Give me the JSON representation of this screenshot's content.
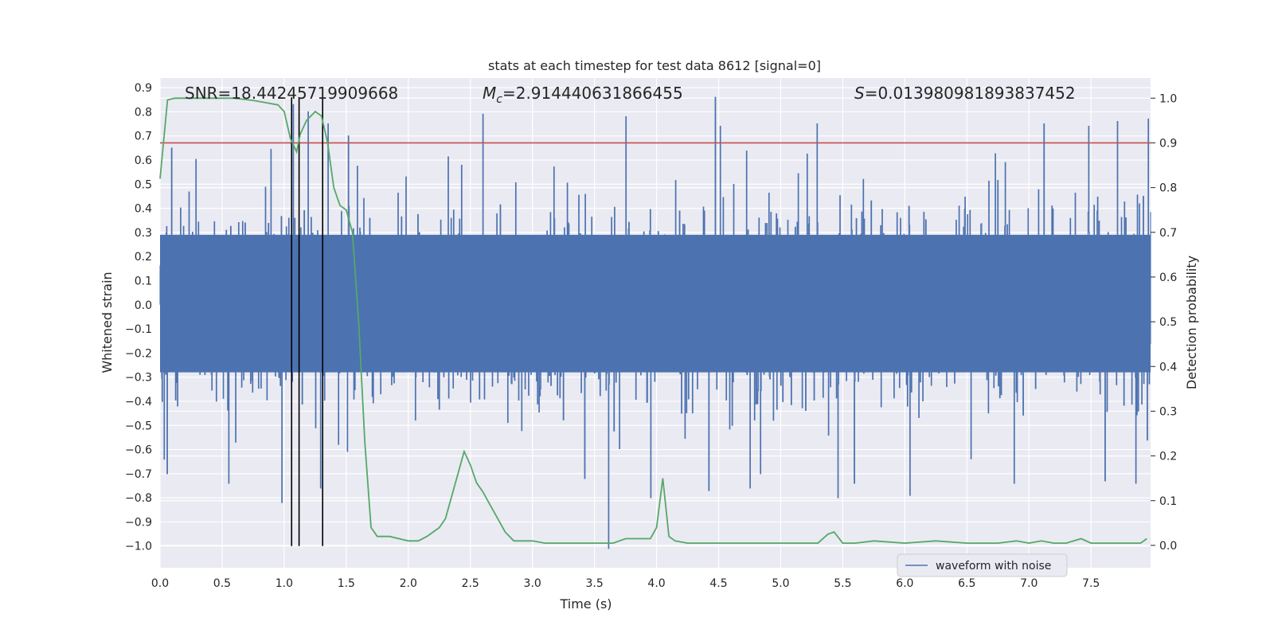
{
  "chart_data": {
    "type": "line",
    "title": "stats at each timestep for test data 8612 [signal=0]",
    "xlabel": "Time (s)",
    "ylabel": "Whitened strain",
    "y2label": "Detection probability",
    "xlim": [
      0.0,
      7.98
    ],
    "ylim": [
      -1.09,
      0.94
    ],
    "y2lim": [
      -0.05,
      1.045
    ],
    "xticks": [
      "0.0",
      "0.5",
      "1.0",
      "1.5",
      "2.0",
      "2.5",
      "3.0",
      "3.5",
      "4.0",
      "4.5",
      "5.0",
      "5.5",
      "6.0",
      "6.5",
      "7.0",
      "7.5"
    ],
    "yticks": [
      "0.9",
      "0.8",
      "0.7",
      "0.6",
      "0.5",
      "0.4",
      "0.3",
      "0.2",
      "0.1",
      "0.0",
      "−0.1",
      "−0.2",
      "−0.3",
      "−0.4",
      "−0.5",
      "−0.6",
      "−0.7",
      "−0.8",
      "−0.9",
      "−1.0"
    ],
    "y2ticks": [
      "1.0",
      "0.9",
      "0.8",
      "0.7",
      "0.6",
      "0.5",
      "0.4",
      "0.3",
      "0.2",
      "0.1",
      "0.0"
    ],
    "grid": true,
    "legend": {
      "position": "lower-right",
      "entries": [
        "waveform with noise"
      ]
    },
    "annotations": {
      "snr": "SNR=18.44245719909668",
      "mc_prefix": "M",
      "mc_sub": "c",
      "mc_value": "=2.914440631866455",
      "s_prefix": "S",
      "s_value": "=0.013980981893837452"
    },
    "threshold_line": {
      "axis": "y2",
      "value": 0.9,
      "color": "#c44e52"
    },
    "vertical_lines_x": [
      1.06,
      1.12,
      1.31
    ],
    "waveform": {
      "name": "waveform with noise",
      "color": "#4c72b0",
      "sample_rate_hz": 250,
      "band": [
        -0.28,
        0.29
      ],
      "peaks": [
        {
          "t": 0.03,
          "v": -0.64
        },
        {
          "t": 0.09,
          "v": 0.65
        },
        {
          "t": 0.55,
          "v": -0.74
        },
        {
          "t": 0.98,
          "v": -0.82
        },
        {
          "t": 1.07,
          "v": 0.83
        },
        {
          "t": 1.19,
          "v": 0.8
        },
        {
          "t": 1.29,
          "v": -0.76
        },
        {
          "t": 1.35,
          "v": 0.75
        },
        {
          "t": 2.6,
          "v": 0.79
        },
        {
          "t": 3.42,
          "v": -0.72
        },
        {
          "t": 3.61,
          "v": -1.01
        },
        {
          "t": 3.75,
          "v": 0.78
        },
        {
          "t": 3.95,
          "v": -0.8
        },
        {
          "t": 4.42,
          "v": -0.77
        },
        {
          "t": 4.47,
          "v": 0.86
        },
        {
          "t": 4.51,
          "v": 0.74
        },
        {
          "t": 4.75,
          "v": -0.76
        },
        {
          "t": 5.29,
          "v": 0.75
        },
        {
          "t": 5.46,
          "v": -0.8
        },
        {
          "t": 5.59,
          "v": -0.74
        },
        {
          "t": 6.04,
          "v": -0.79
        },
        {
          "t": 6.88,
          "v": -0.74
        },
        {
          "t": 7.12,
          "v": 0.75
        },
        {
          "t": 7.48,
          "v": 0.74
        },
        {
          "t": 7.61,
          "v": -0.73
        },
        {
          "t": 7.71,
          "v": 0.76
        },
        {
          "t": 7.86,
          "v": -0.74
        },
        {
          "t": 7.96,
          "v": 0.77
        }
      ]
    },
    "series": [
      {
        "name": "detection probability",
        "axis": "y2",
        "color": "#55a868",
        "x": [
          0.0,
          0.06,
          0.12,
          0.2,
          0.3,
          0.45,
          0.6,
          0.75,
          0.85,
          0.95,
          1.0,
          1.05,
          1.1,
          1.13,
          1.18,
          1.25,
          1.3,
          1.35,
          1.4,
          1.45,
          1.5,
          1.55,
          1.6,
          1.65,
          1.7,
          1.75,
          1.85,
          2.0,
          2.08,
          2.15,
          2.2,
          2.25,
          2.3,
          2.35,
          2.4,
          2.45,
          2.5,
          2.55,
          2.6,
          2.7,
          2.78,
          2.85,
          3.0,
          3.1,
          3.2,
          3.3,
          3.4,
          3.5,
          3.6,
          3.65,
          3.75,
          3.85,
          3.95,
          4.0,
          4.05,
          4.1,
          4.15,
          4.25,
          4.4,
          4.6,
          4.8,
          5.0,
          5.2,
          5.3,
          5.38,
          5.43,
          5.5,
          5.6,
          5.75,
          6.0,
          6.25,
          6.5,
          6.75,
          6.9,
          7.0,
          7.1,
          7.2,
          7.3,
          7.42,
          7.5,
          7.6,
          7.75,
          7.9,
          7.95
        ],
        "y": [
          0.82,
          0.996,
          1.0,
          1.0,
          1.0,
          1.0,
          1.0,
          0.995,
          0.99,
          0.985,
          0.97,
          0.91,
          0.88,
          0.92,
          0.95,
          0.97,
          0.96,
          0.9,
          0.8,
          0.76,
          0.75,
          0.7,
          0.5,
          0.23,
          0.04,
          0.02,
          0.02,
          0.01,
          0.01,
          0.02,
          0.03,
          0.04,
          0.06,
          0.11,
          0.16,
          0.21,
          0.18,
          0.14,
          0.12,
          0.07,
          0.03,
          0.01,
          0.01,
          0.005,
          0.005,
          0.005,
          0.005,
          0.005,
          0.005,
          0.005,
          0.015,
          0.015,
          0.015,
          0.04,
          0.15,
          0.02,
          0.01,
          0.005,
          0.005,
          0.005,
          0.005,
          0.005,
          0.005,
          0.005,
          0.025,
          0.03,
          0.005,
          0.005,
          0.01,
          0.005,
          0.01,
          0.005,
          0.005,
          0.01,
          0.005,
          0.01,
          0.005,
          0.005,
          0.015,
          0.005,
          0.005,
          0.005,
          0.005,
          0.015
        ]
      }
    ]
  }
}
